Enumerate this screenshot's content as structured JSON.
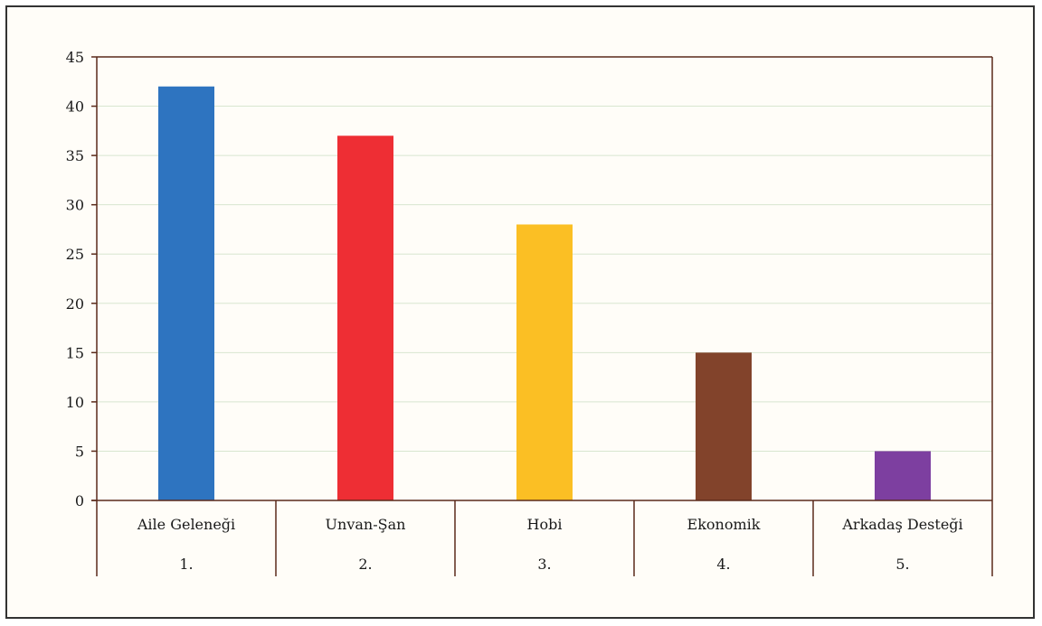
{
  "chart_data": {
    "type": "bar",
    "categories": [
      "Aile Geleneği",
      "Unvan-Şan",
      "Hobi",
      "Ekonomik",
      "Arkadaş Desteği"
    ],
    "ranks": [
      "1.",
      "2.",
      "3.",
      "4.",
      "5."
    ],
    "values": [
      42,
      37,
      28,
      15,
      5
    ],
    "colors": [
      "#2e74c0",
      "#ee2e34",
      "#fbbf24",
      "#82432b",
      "#7d3fa0"
    ],
    "title": "",
    "xlabel": "",
    "ylabel": "",
    "ylim": [
      0,
      45
    ],
    "yticks": [
      0,
      5,
      10,
      15,
      20,
      25,
      30,
      35,
      40,
      45
    ],
    "grid": true,
    "legend": "none"
  },
  "colors": {
    "grid": "#d8e6d0",
    "axis": "#5a2a1a",
    "frame": "#333333"
  }
}
